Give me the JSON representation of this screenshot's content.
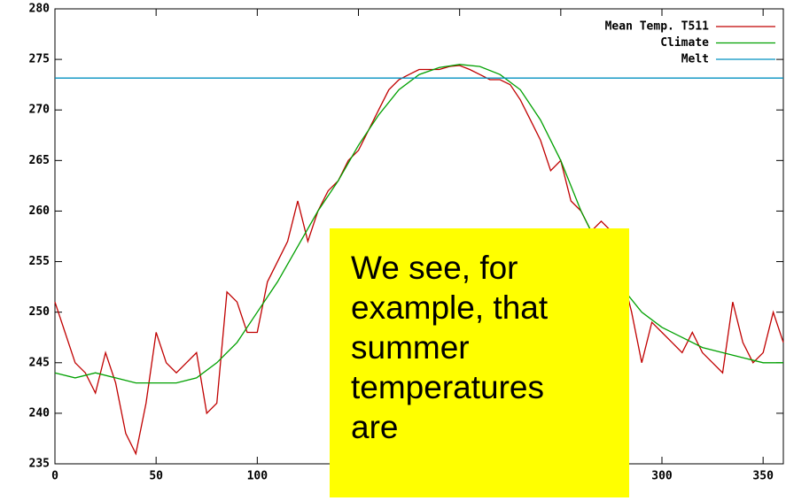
{
  "chart_data": {
    "type": "line",
    "xlim": [
      0,
      360
    ],
    "xticks": [
      0,
      50,
      100,
      150,
      200,
      250,
      300,
      350
    ],
    "ylim": [
      235,
      280
    ],
    "yticks": [
      235,
      240,
      245,
      250,
      255,
      260,
      265,
      270,
      275,
      280
    ],
    "grid": false,
    "legend": "top-right",
    "series": [
      {
        "name": "Mean Temp. T511",
        "color": "#c00000",
        "x": [
          0,
          5,
          10,
          15,
          20,
          25,
          30,
          35,
          40,
          45,
          50,
          55,
          60,
          65,
          70,
          75,
          80,
          85,
          90,
          95,
          100,
          105,
          110,
          115,
          120,
          125,
          130,
          135,
          140,
          145,
          150,
          155,
          160,
          165,
          170,
          175,
          180,
          185,
          190,
          195,
          200,
          205,
          210,
          215,
          220,
          225,
          230,
          235,
          240,
          245,
          250,
          255,
          260,
          265,
          270,
          275,
          280,
          285,
          290,
          295,
          300,
          305,
          310,
          315,
          320,
          325,
          330,
          335,
          340,
          345,
          350,
          355,
          360
        ],
        "values": [
          251,
          248,
          245,
          244,
          242,
          246,
          243,
          238,
          236,
          241,
          248,
          245,
          244,
          245,
          246,
          240,
          241,
          252,
          251,
          248,
          248,
          253,
          255,
          257,
          261,
          257,
          260,
          262,
          263,
          265,
          266,
          268,
          270,
          272,
          273,
          273.5,
          274,
          274,
          274,
          274.3,
          274.4,
          274,
          273.5,
          273,
          273,
          272.5,
          271,
          269,
          267,
          264,
          265,
          261,
          260,
          258,
          259,
          258,
          254,
          250,
          245,
          249,
          248,
          247,
          246,
          248,
          246,
          245,
          244,
          251,
          247,
          245,
          246,
          250,
          247
        ]
      },
      {
        "name": "Climate",
        "color": "#00a000",
        "x": [
          0,
          10,
          20,
          30,
          40,
          50,
          60,
          70,
          80,
          90,
          100,
          110,
          120,
          130,
          140,
          150,
          160,
          170,
          180,
          190,
          200,
          210,
          220,
          230,
          240,
          250,
          260,
          270,
          280,
          290,
          300,
          310,
          320,
          330,
          340,
          350,
          360
        ],
        "values": [
          244,
          243.5,
          244,
          243.5,
          243,
          243,
          243,
          243.5,
          245,
          247,
          250,
          253,
          256.5,
          260,
          263,
          266.5,
          269.5,
          272,
          273.5,
          274.2,
          274.5,
          274.3,
          273.5,
          272,
          269,
          265,
          260,
          256,
          252.5,
          250,
          248.5,
          247.5,
          246.5,
          246,
          245.5,
          245,
          245
        ]
      },
      {
        "name": "Melt",
        "color": "#0090c0",
        "x": [
          0,
          360
        ],
        "values": [
          273.15,
          273.15
        ]
      }
    ],
    "annotation_lines": [
      "We see, for",
      "example, that",
      "summer",
      "temperatures",
      "are"
    ]
  }
}
